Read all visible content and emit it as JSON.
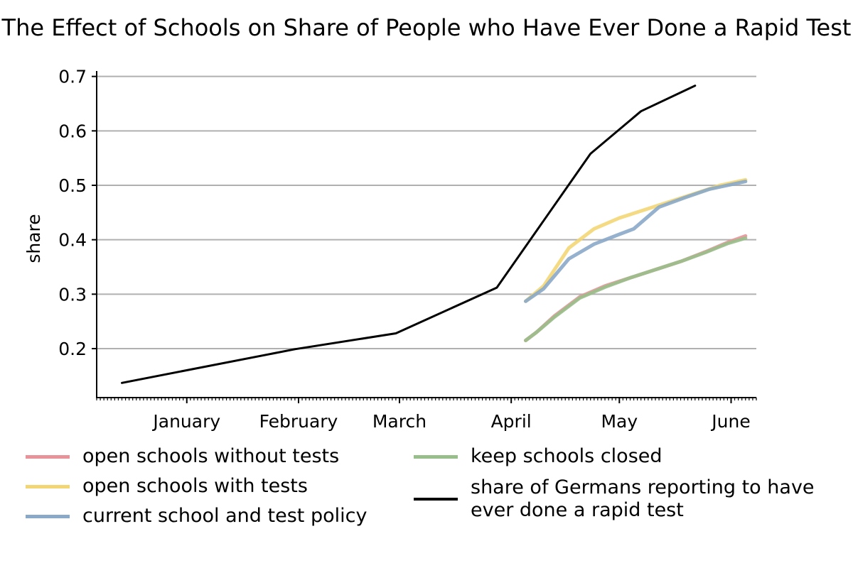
{
  "chart_data": {
    "type": "line",
    "title": "The Effect of Schools on Share of People who Have Ever Done a Rapid Test",
    "xlabel": "",
    "ylabel": "share",
    "x_axis": "date",
    "x_ticks": [
      {
        "date": "2021-01-01",
        "label": "January"
      },
      {
        "date": "2021-02-01",
        "label": "February"
      },
      {
        "date": "2021-03-01",
        "label": "March"
      },
      {
        "date": "2021-04-01",
        "label": "April"
      },
      {
        "date": "2021-05-01",
        "label": "May"
      },
      {
        "date": "2021-06-01",
        "label": "June"
      }
    ],
    "xlim": [
      "2020-12-07",
      "2021-06-08"
    ],
    "y_ticks": [
      0.2,
      0.3,
      0.4,
      0.5,
      0.6,
      0.7
    ],
    "ylim": [
      0.11,
      0.71
    ],
    "grid": "horizontal",
    "legend_position": "bottom",
    "series": [
      {
        "name": "open schools without tests",
        "color": "#e8939a",
        "points": [
          [
            "2021-04-05",
            0.215
          ],
          [
            "2021-04-08",
            0.23
          ],
          [
            "2021-04-13",
            0.26
          ],
          [
            "2021-04-20",
            0.295
          ],
          [
            "2021-04-27",
            0.315
          ],
          [
            "2021-05-04",
            0.33
          ],
          [
            "2021-05-11",
            0.345
          ],
          [
            "2021-05-18",
            0.36
          ],
          [
            "2021-05-25",
            0.378
          ],
          [
            "2021-05-31",
            0.395
          ],
          [
            "2021-06-05",
            0.407
          ]
        ]
      },
      {
        "name": "open schools with tests",
        "color": "#f2d675",
        "points": [
          [
            "2021-04-05",
            0.287
          ],
          [
            "2021-04-10",
            0.315
          ],
          [
            "2021-04-17",
            0.385
          ],
          [
            "2021-04-24",
            0.42
          ],
          [
            "2021-05-01",
            0.44
          ],
          [
            "2021-05-08",
            0.455
          ],
          [
            "2021-05-15",
            0.47
          ],
          [
            "2021-05-22",
            0.485
          ],
          [
            "2021-05-29",
            0.5
          ],
          [
            "2021-06-05",
            0.51
          ]
        ]
      },
      {
        "name": "current school and test policy",
        "color": "#8aa9c8",
        "points": [
          [
            "2021-04-05",
            0.287
          ],
          [
            "2021-04-10",
            0.31
          ],
          [
            "2021-04-17",
            0.365
          ],
          [
            "2021-04-24",
            0.392
          ],
          [
            "2021-05-01",
            0.41
          ],
          [
            "2021-05-05",
            0.42
          ],
          [
            "2021-05-12",
            0.46
          ],
          [
            "2021-05-19",
            0.477
          ],
          [
            "2021-05-26",
            0.493
          ],
          [
            "2021-06-05",
            0.507
          ]
        ]
      },
      {
        "name": "keep schools closed",
        "color": "#98bf8b",
        "points": [
          [
            "2021-04-05",
            0.215
          ],
          [
            "2021-04-08",
            0.23
          ],
          [
            "2021-04-13",
            0.258
          ],
          [
            "2021-04-20",
            0.293
          ],
          [
            "2021-04-27",
            0.313
          ],
          [
            "2021-05-04",
            0.33
          ],
          [
            "2021-05-11",
            0.345
          ],
          [
            "2021-05-18",
            0.36
          ],
          [
            "2021-05-25",
            0.377
          ],
          [
            "2021-05-31",
            0.393
          ],
          [
            "2021-06-05",
            0.403
          ]
        ]
      },
      {
        "name": "share of Germans reporting to have\never done a rapid test",
        "color": "#000000",
        "points": [
          [
            "2020-12-14",
            0.137
          ],
          [
            "2021-01-31",
            0.199
          ],
          [
            "2021-02-28",
            0.228
          ],
          [
            "2021-03-28",
            0.312
          ],
          [
            "2021-04-23",
            0.558
          ],
          [
            "2021-05-07",
            0.636
          ],
          [
            "2021-05-22",
            0.683
          ]
        ]
      }
    ]
  }
}
